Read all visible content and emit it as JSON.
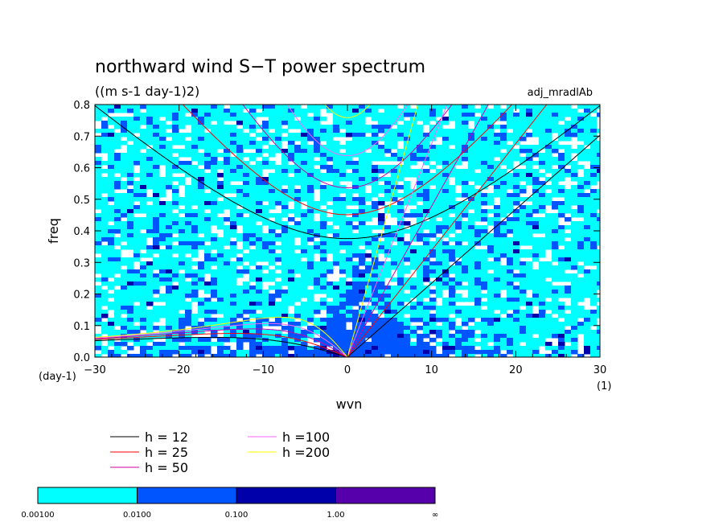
{
  "chart_data": {
    "type": "heatmap",
    "title": "northward wind S−T power spectrum",
    "subtitle": "((m s-1 day-1)2)",
    "corner_label": "adj_mradlAb",
    "xlabel": "wvn",
    "xunit": "(1)",
    "ylabel": "freq",
    "yunit": "(day-1)",
    "xlim": [
      -30,
      30
    ],
    "ylim": [
      0,
      0.8
    ],
    "xticks": [
      -30,
      -20,
      -10,
      0,
      10,
      20,
      30
    ],
    "yticks": [
      0.0,
      0.1,
      0.2,
      0.3,
      0.4,
      0.5,
      0.6,
      0.7,
      0.8
    ],
    "xtick_labels": [
      "−30",
      "−20",
      "−10",
      "0",
      "10",
      "20",
      "30"
    ],
    "ytick_labels": [
      "0.0",
      "0.1",
      "0.2",
      "0.3",
      "0.4",
      "0.5",
      "0.6",
      "0.7",
      "0.8"
    ],
    "grid": false,
    "legend_position": "bottom-left",
    "dispersion_curves": [
      {
        "name": "h = 12",
        "h": 12,
        "color": "#000000"
      },
      {
        "name": "h = 25",
        "h": 25,
        "color": "#ff0000"
      },
      {
        "name": "h = 50",
        "h": 50,
        "color": "#cc00aa"
      },
      {
        "name": "h =100",
        "h": 100,
        "color": "#ff66ff"
      },
      {
        "name": "h =200",
        "h": 200,
        "color": "#ffff00"
      }
    ],
    "colorbar": {
      "levels": [
        "0.00100",
        "0.0100",
        "0.100",
        "1.00",
        "∞"
      ],
      "colors": [
        "#00ffff",
        "#0055ff",
        "#0000aa",
        "#5500aa"
      ]
    }
  }
}
